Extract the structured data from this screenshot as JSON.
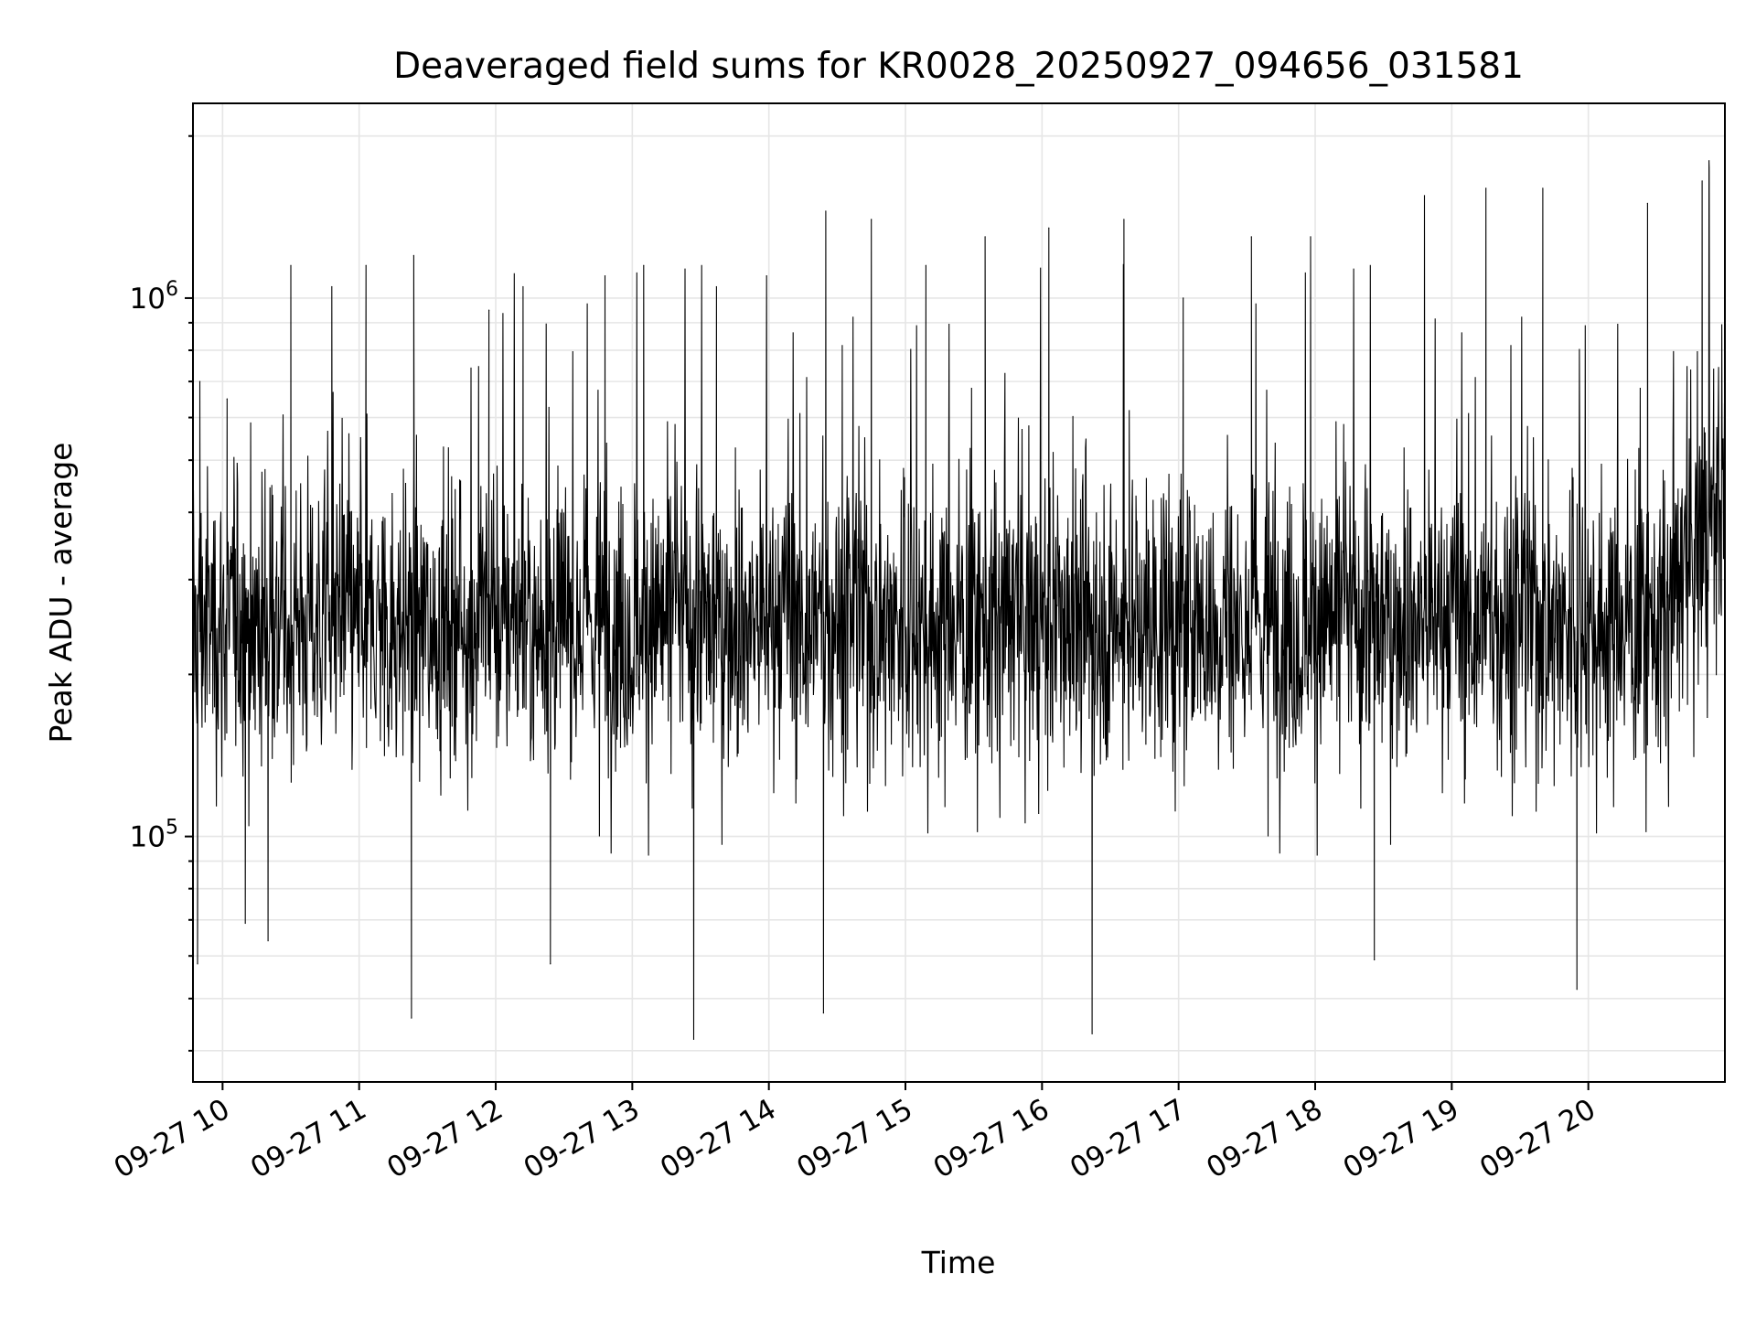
{
  "chart_data": {
    "type": "line",
    "title": "Deaveraged field sums for KR0028_20250927_094656_031581",
    "xlabel": "Time",
    "ylabel": "Peak ADU - average",
    "x_scale": "time",
    "y_scale": "log",
    "ylim": [
      35000,
      2300000
    ],
    "xlim": [
      "2025-09-27 09:47",
      "2025-09-27 21:00"
    ],
    "grid": true,
    "legend": "none",
    "line_color": "#000000",
    "x_ticks": [
      {
        "label": "09-27 10",
        "time": "2025-09-27 10:00"
      },
      {
        "label": "09-27 11",
        "time": "2025-09-27 11:00"
      },
      {
        "label": "09-27 12",
        "time": "2025-09-27 12:00"
      },
      {
        "label": "09-27 13",
        "time": "2025-09-27 13:00"
      },
      {
        "label": "09-27 14",
        "time": "2025-09-27 14:00"
      },
      {
        "label": "09-27 15",
        "time": "2025-09-27 15:00"
      },
      {
        "label": "09-27 16",
        "time": "2025-09-27 16:00"
      },
      {
        "label": "09-27 17",
        "time": "2025-09-27 17:00"
      },
      {
        "label": "09-27 18",
        "time": "2025-09-27 18:00"
      },
      {
        "label": "09-27 19",
        "time": "2025-09-27 19:00"
      },
      {
        "label": "09-27 20",
        "time": "2025-09-27 20:00"
      }
    ],
    "y_ticks": [
      {
        "label_base": "10",
        "label_exp": "5",
        "value": 100000
      },
      {
        "label_base": "10",
        "label_exp": "6",
        "value": 1000000
      }
    ],
    "series": [
      {
        "values": [
          {
            "x": "2025-09-27 09:47",
            "y": 260000
          },
          {
            "x": "2025-09-27 09:49",
            "y": 58000
          },
          {
            "x": "2025-09-27 09:50",
            "y": 700000
          },
          {
            "x": "2025-09-27 10:02",
            "y": 650000
          },
          {
            "x": "2025-09-27 10:10",
            "y": 69000
          },
          {
            "x": "2025-09-27 10:20",
            "y": 64000
          },
          {
            "x": "2025-09-27 10:30",
            "y": 1150000
          },
          {
            "x": "2025-09-27 10:48",
            "y": 1050000
          },
          {
            "x": "2025-09-27 11:03",
            "y": 1150000
          },
          {
            "x": "2025-09-27 11:23",
            "y": 46000
          },
          {
            "x": "2025-09-27 11:24",
            "y": 1200000
          },
          {
            "x": "2025-09-27 11:57",
            "y": 950000
          },
          {
            "x": "2025-09-27 12:12",
            "y": 1050000
          },
          {
            "x": "2025-09-27 12:24",
            "y": 58000
          },
          {
            "x": "2025-09-27 12:48",
            "y": 1100000
          },
          {
            "x": "2025-09-27 13:05",
            "y": 1150000
          },
          {
            "x": "2025-09-27 13:27",
            "y": 42000
          },
          {
            "x": "2025-09-27 13:37",
            "y": 1050000
          },
          {
            "x": "2025-09-27 13:59",
            "y": 1100000
          },
          {
            "x": "2025-09-27 14:24",
            "y": 47000
          },
          {
            "x": "2025-09-27 14:25",
            "y": 1450000
          },
          {
            "x": "2025-09-27 14:45",
            "y": 1400000
          },
          {
            "x": "2025-09-27 15:09",
            "y": 1150000
          },
          {
            "x": "2025-09-27 15:35",
            "y": 1300000
          },
          {
            "x": "2025-09-27 16:03",
            "y": 1350000
          },
          {
            "x": "2025-09-27 16:22",
            "y": 43000
          },
          {
            "x": "2025-09-27 16:36",
            "y": 1400000
          },
          {
            "x": "2025-09-27 17:02",
            "y": 1000000
          },
          {
            "x": "2025-09-27 17:32",
            "y": 1300000
          },
          {
            "x": "2025-09-27 17:58",
            "y": 1300000
          },
          {
            "x": "2025-09-27 18:26",
            "y": 59000
          },
          {
            "x": "2025-09-27 18:48",
            "y": 1550000
          },
          {
            "x": "2025-09-27 19:15",
            "y": 1600000
          },
          {
            "x": "2025-09-27 19:40",
            "y": 1600000
          },
          {
            "x": "2025-09-27 19:55",
            "y": 52000
          },
          {
            "x": "2025-09-27 20:26",
            "y": 1500000
          },
          {
            "x": "2025-09-27 20:50",
            "y": 1650000
          },
          {
            "x": "2025-09-27 20:53",
            "y": 1800000
          },
          {
            "x": "2025-09-27 21:00",
            "y": 480000
          }
        ],
        "baseline_band": {
          "typical_low": 140000,
          "typical_median": 250000,
          "typical_high": 450000,
          "end_level": 450000
        }
      }
    ]
  }
}
